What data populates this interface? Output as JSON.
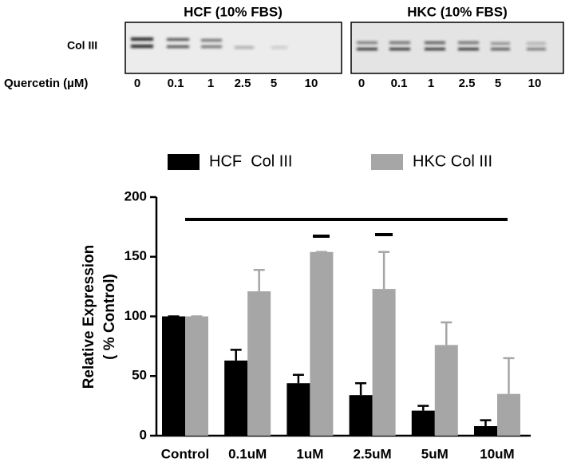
{
  "blot": {
    "row_label": "Col III",
    "lane_axis_label": "Quercetin (µM)",
    "panels": [
      {
        "title": "HCF (10% FBS)",
        "lanes": [
          "0",
          "0.1",
          "1",
          "2.5",
          "5",
          "10"
        ]
      },
      {
        "title": "HKC (10% FBS)",
        "lanes": [
          "0",
          "0.1",
          "1",
          "2.5",
          "5",
          "10"
        ]
      }
    ]
  },
  "chart_data": {
    "type": "bar",
    "ylabel": [
      "Relative Expression",
      "( % Control)"
    ],
    "categories": [
      "Control",
      "0.1uM",
      "1uM",
      "2.5uM",
      "5uM",
      "10uM"
    ],
    "series": [
      {
        "name": "HCF  Col III",
        "color": "#000000",
        "values": [
          100,
          63,
          44,
          34,
          21,
          8
        ],
        "errors": [
          0,
          9,
          7,
          10,
          4,
          5
        ]
      },
      {
        "name": "HKC Col III",
        "color": "#a6a6a6",
        "values": [
          100,
          121,
          154,
          123,
          76,
          35
        ],
        "errors": [
          0,
          18,
          0,
          31,
          19,
          30
        ]
      }
    ],
    "ylim": [
      0,
      200
    ],
    "yticks": [
      0,
      50,
      100,
      150,
      200
    ],
    "legend": "top"
  }
}
